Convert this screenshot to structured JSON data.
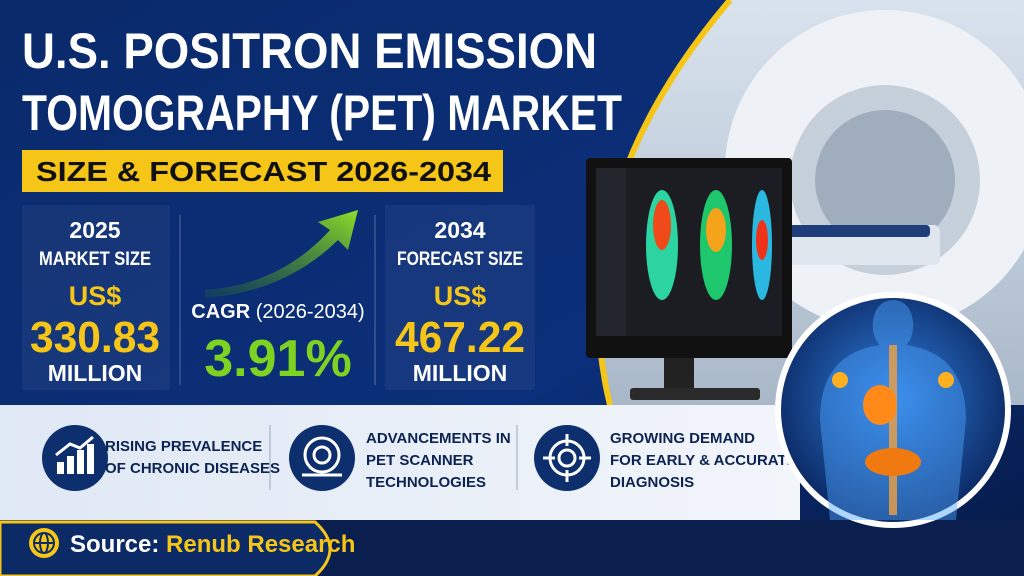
{
  "header": {
    "title_lines": [
      "U.S. POSITRON EMISSION",
      "TOMOGRAPHY (PET) MARKET"
    ],
    "subtitle": "SIZE & FORECAST 2026-2034"
  },
  "stats": [
    {
      "year": "2025",
      "label": "MARKET SIZE",
      "currency": "US$",
      "value": "330.83",
      "unit": "MILLION"
    },
    {
      "label": "CAGR",
      "period": "(2026-2034)",
      "value": "3.91%"
    },
    {
      "year": "2034",
      "label": "FORECAST SIZE",
      "currency": "US$",
      "value": "467.22",
      "unit": "MILLION"
    }
  ],
  "drivers": [
    {
      "lines": [
        "RISING PREVALENCE",
        "OF CHRONIC DISEASES"
      ]
    },
    {
      "lines": [
        "ADVANCEMENTS IN",
        "PET SCANNER",
        "TECHNOLOGIES"
      ]
    },
    {
      "lines": [
        "GROWING DEMAND",
        "FOR EARLY & ACCURATE",
        "DIAGNOSIS"
      ]
    }
  ],
  "source": {
    "label": "Source:",
    "name": "Renub Research"
  }
}
